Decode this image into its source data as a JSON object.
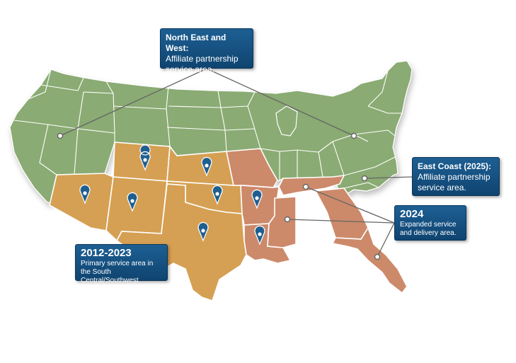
{
  "colors": {
    "other_states": "#8aab73",
    "primary_area": "#d5a053",
    "expanded_area": "#cc8a6b",
    "state_border": "#ffffff",
    "callout_bg": "#14507f",
    "leader_line": "#666666",
    "pin": "#1f5f8f"
  },
  "callouts": {
    "north_east_west": {
      "title": "North East and West:",
      "body": "Affiliate partnership service area."
    },
    "east_coast": {
      "title": "East Coast (2025):",
      "body": "Affiliate partnership service area."
    },
    "expanded_2024": {
      "title": "2024",
      "body": "Expanded service and delivery area."
    },
    "primary_2012": {
      "title": "2012-2023",
      "body": "Primary service area in the South Central/Southwest"
    }
  },
  "regions": {
    "primary_service_area": [
      "Arizona",
      "New Mexico",
      "Colorado",
      "Kansas",
      "Oklahoma",
      "Texas"
    ],
    "expanded_service_area": [
      "Missouri",
      "Arkansas",
      "Louisiana",
      "Tennessee",
      "Mississippi",
      "Georgia",
      "Florida"
    ],
    "location_pins": [
      "Colorado",
      "Kansas",
      "Arizona",
      "New Mexico",
      "Oklahoma",
      "Arkansas",
      "Texas",
      "Louisiana"
    ]
  },
  "icons": {
    "pin": "map-pin-icon",
    "dot": "leader-endpoint-dot"
  }
}
